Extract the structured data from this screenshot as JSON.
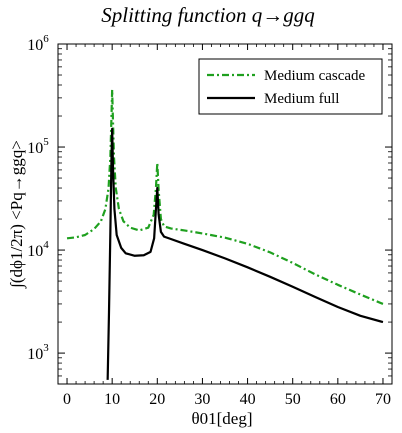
{
  "chart_data": {
    "type": "line",
    "title": "Splitting function q→ggq",
    "xlabel": "θ01[deg]",
    "ylabel": "∫(dϕ1/2π) <Pq→ggq>",
    "xlim": [
      -2,
      72
    ],
    "ylim_log10": [
      2.7,
      6.0
    ],
    "y_scale": "log",
    "grid": false,
    "legend_position": "top-right",
    "x_ticks": [
      0,
      10,
      20,
      30,
      40,
      50,
      60,
      70
    ],
    "y_ticks": [
      {
        "value": 1000,
        "base": "10",
        "exp": "3"
      },
      {
        "value": 10000,
        "base": "10",
        "exp": "4"
      },
      {
        "value": 100000,
        "base": "10",
        "exp": "5"
      },
      {
        "value": 1000000,
        "base": "10",
        "exp": "6"
      }
    ],
    "series": [
      {
        "name": "Medium cascade",
        "color": "#1fa01f",
        "style": "dashdot",
        "points": [
          [
            0,
            13000
          ],
          [
            2,
            13300
          ],
          [
            4,
            14000
          ],
          [
            6,
            16000
          ],
          [
            7.5,
            19000
          ],
          [
            8.5,
            25000
          ],
          [
            9.2,
            40000
          ],
          [
            9.6,
            80000
          ],
          [
            9.85,
            200000
          ],
          [
            10,
            360000
          ],
          [
            10.15,
            200000
          ],
          [
            10.4,
            80000
          ],
          [
            10.8,
            40000
          ],
          [
            11.5,
            25000
          ],
          [
            12.5,
            19000
          ],
          [
            14,
            16500
          ],
          [
            16,
            15500
          ],
          [
            18,
            16500
          ],
          [
            19.2,
            22000
          ],
          [
            19.7,
            40000
          ],
          [
            20,
            70000
          ],
          [
            20.3,
            38000
          ],
          [
            20.8,
            20000
          ],
          [
            21.5,
            17000
          ],
          [
            23,
            16200
          ],
          [
            26,
            15500
          ],
          [
            30,
            14500
          ],
          [
            35,
            13200
          ],
          [
            40,
            11500
          ],
          [
            45,
            9500
          ],
          [
            50,
            7500
          ],
          [
            55,
            5800
          ],
          [
            60,
            4600
          ],
          [
            65,
            3700
          ],
          [
            70,
            3000
          ]
        ]
      },
      {
        "name": "Medium full",
        "color": "#000000",
        "style": "solid",
        "points": [
          [
            9.0,
            550
          ],
          [
            9.3,
            2500
          ],
          [
            9.6,
            15000
          ],
          [
            9.85,
            80000
          ],
          [
            10,
            150000
          ],
          [
            10.2,
            60000
          ],
          [
            10.5,
            25000
          ],
          [
            11,
            14000
          ],
          [
            12,
            10500
          ],
          [
            13,
            9300
          ],
          [
            15,
            8800
          ],
          [
            17,
            8900
          ],
          [
            18.5,
            9600
          ],
          [
            19.3,
            13000
          ],
          [
            19.7,
            25000
          ],
          [
            20,
            40000
          ],
          [
            20.3,
            22000
          ],
          [
            20.8,
            15000
          ],
          [
            21.5,
            13500
          ],
          [
            23,
            12800
          ],
          [
            26,
            11500
          ],
          [
            30,
            10000
          ],
          [
            35,
            8300
          ],
          [
            40,
            6800
          ],
          [
            45,
            5500
          ],
          [
            50,
            4400
          ],
          [
            55,
            3500
          ],
          [
            60,
            2800
          ],
          [
            65,
            2300
          ],
          [
            70,
            2000
          ]
        ]
      }
    ]
  }
}
